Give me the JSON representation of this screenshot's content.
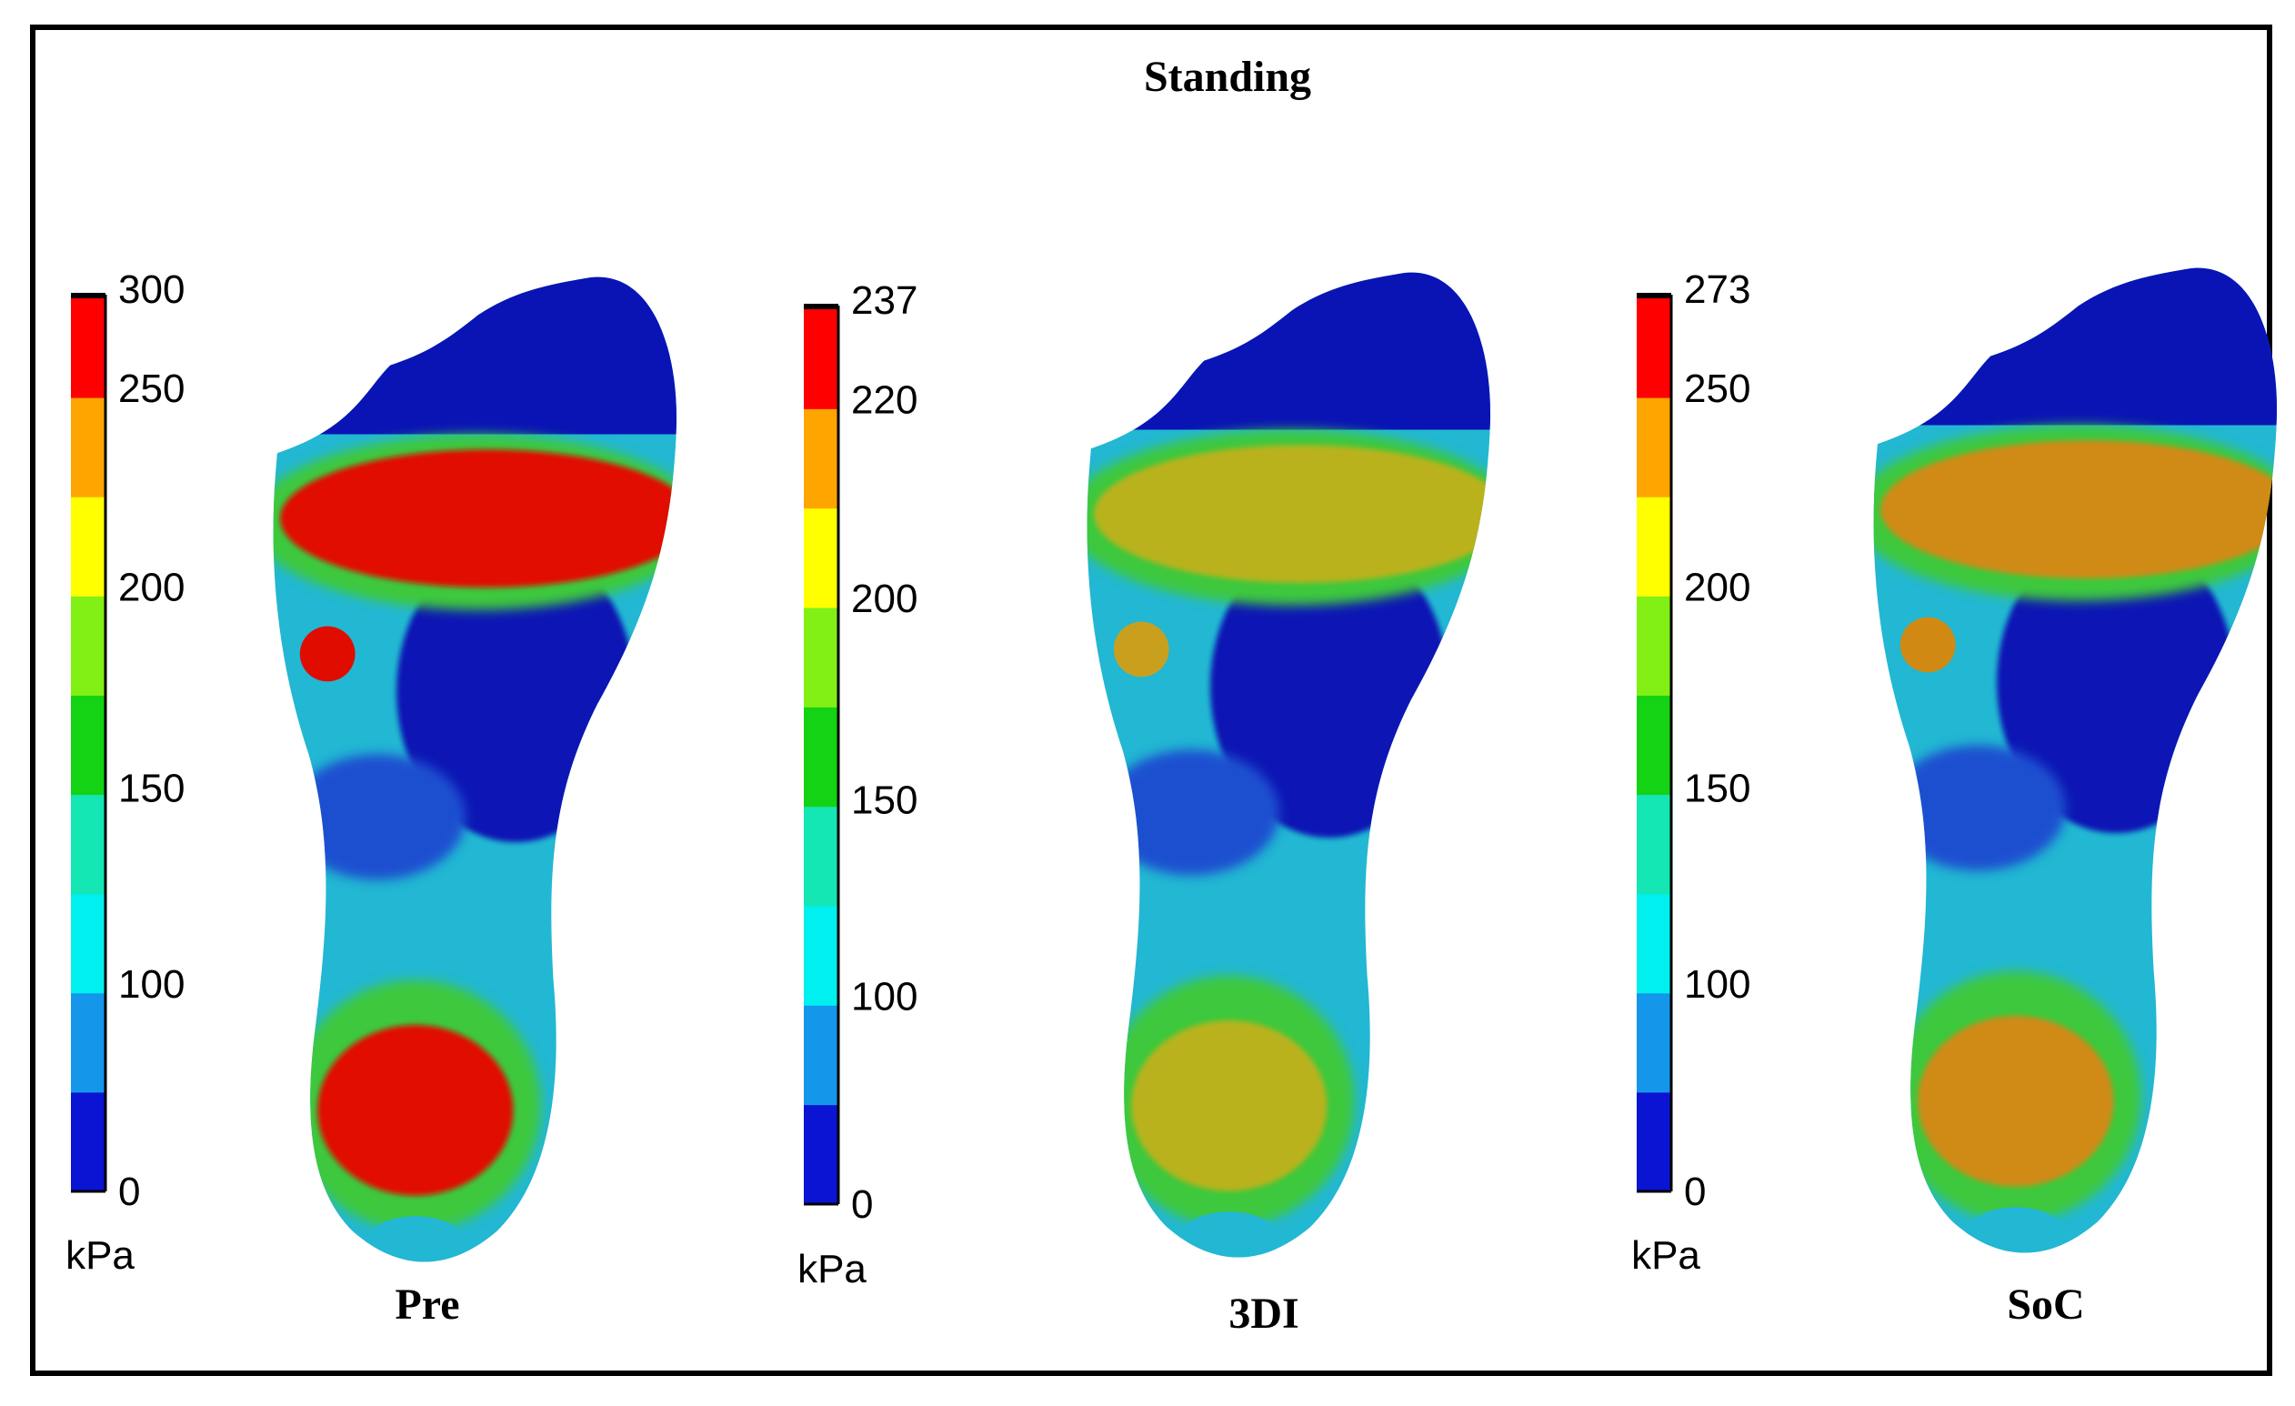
{
  "figure": {
    "title": "Standing"
  },
  "chart_data": [
    {
      "type": "heatmap",
      "panel_label": "Pre",
      "unit_label": "kPa",
      "colorbar_ticks": [
        "0",
        "100",
        "150",
        "200",
        "250",
        "300"
      ],
      "colorbar_max": 300,
      "regions": [
        {
          "region": "toes",
          "level": "low",
          "color": "#0a14b4"
        },
        {
          "region": "forefoot",
          "level": "max",
          "color": "#e00c00"
        },
        {
          "region": "hot-spot",
          "level": "max",
          "color": "#e00c00"
        },
        {
          "region": "arch",
          "level": "low",
          "color": "#0a14b4"
        },
        {
          "region": "heel",
          "level": "max",
          "color": "#e00c00"
        }
      ]
    },
    {
      "type": "heatmap",
      "panel_label": "3DI",
      "unit_label": "kPa",
      "colorbar_ticks": [
        "0",
        "100",
        "150",
        "200",
        "220",
        "237"
      ],
      "colorbar_max": 237,
      "regions": [
        {
          "region": "toes",
          "level": "low",
          "color": "#0a14b4"
        },
        {
          "region": "forefoot",
          "level": "mid-high",
          "color": "#b9b21a"
        },
        {
          "region": "hot-spot",
          "level": "mid-high",
          "color": "#c8a01e"
        },
        {
          "region": "arch",
          "level": "low",
          "color": "#0a14b4"
        },
        {
          "region": "heel",
          "level": "mid-high",
          "color": "#b9b21a"
        }
      ]
    },
    {
      "type": "heatmap",
      "panel_label": "SoC",
      "unit_label": "kPa",
      "colorbar_ticks": [
        "0",
        "100",
        "150",
        "200",
        "250",
        "273"
      ],
      "colorbar_max": 273,
      "regions": [
        {
          "region": "toes",
          "level": "low",
          "color": "#0a14b4"
        },
        {
          "region": "forefoot",
          "level": "high",
          "color": "#d08a14"
        },
        {
          "region": "hot-spot",
          "level": "high",
          "color": "#d08a14"
        },
        {
          "region": "arch",
          "level": "low",
          "color": "#0a14b4"
        },
        {
          "region": "heel",
          "level": "high",
          "color": "#d08a14"
        }
      ]
    }
  ],
  "colormap": [
    "#0a14d2",
    "#1496ea",
    "#00f0f0",
    "#14e6b4",
    "#14d214",
    "#82f014",
    "#ffff00",
    "#ffa500",
    "#ff0000"
  ]
}
